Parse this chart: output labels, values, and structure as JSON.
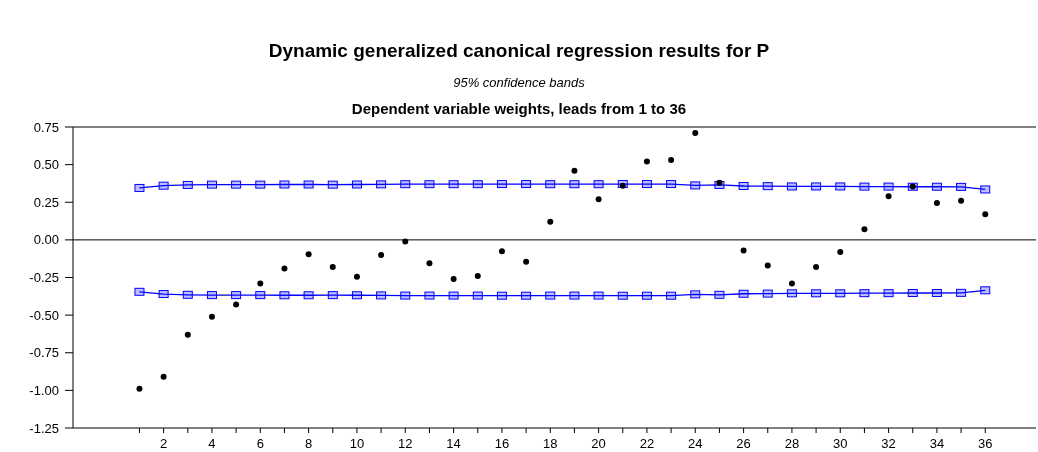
{
  "chart_data": {
    "type": "scatter",
    "title": "Dynamic generalized canonical regression results for P",
    "subtitle": "95% confidence bands",
    "annotations": [
      "Dependent variable weights, leads from 1 to 36"
    ],
    "x": [
      1,
      2,
      3,
      4,
      5,
      6,
      7,
      8,
      9,
      10,
      11,
      12,
      13,
      14,
      15,
      16,
      17,
      18,
      19,
      20,
      21,
      22,
      23,
      24,
      25,
      26,
      27,
      28,
      29,
      30,
      31,
      32,
      33,
      34,
      35,
      36
    ],
    "series": [
      {
        "marker": "circle",
        "color": "#000000",
        "values": [
          -0.99,
          -0.91,
          -0.63,
          -0.51,
          -0.43,
          -0.29,
          -0.19,
          -0.095,
          -0.18,
          -0.245,
          -0.1,
          -0.01,
          -0.155,
          -0.26,
          -0.24,
          -0.075,
          -0.145,
          0.12,
          0.46,
          0.27,
          0.36,
          0.52,
          0.53,
          0.71,
          0.38,
          -0.07,
          -0.17,
          -0.29,
          -0.18,
          -0.08,
          0.07,
          0.29,
          0.355,
          0.245,
          0.26,
          0.17
        ]
      },
      {
        "type": "line",
        "marker": "square",
        "color": "#0000ff",
        "values": [
          0.345,
          0.36,
          0.365,
          0.367,
          0.367,
          0.367,
          0.368,
          0.368,
          0.367,
          0.368,
          0.369,
          0.37,
          0.37,
          0.37,
          0.37,
          0.371,
          0.371,
          0.37,
          0.37,
          0.37,
          0.371,
          0.371,
          0.371,
          0.362,
          0.365,
          0.358,
          0.357,
          0.355,
          0.355,
          0.355,
          0.354,
          0.354,
          0.353,
          0.353,
          0.352,
          0.335
        ]
      },
      {
        "type": "line",
        "marker": "square",
        "color": "#0000ff",
        "values": [
          -0.345,
          -0.36,
          -0.365,
          -0.367,
          -0.367,
          -0.367,
          -0.368,
          -0.368,
          -0.367,
          -0.368,
          -0.369,
          -0.37,
          -0.37,
          -0.37,
          -0.37,
          -0.371,
          -0.371,
          -0.37,
          -0.37,
          -0.37,
          -0.371,
          -0.371,
          -0.371,
          -0.362,
          -0.365,
          -0.358,
          -0.357,
          -0.355,
          -0.355,
          -0.355,
          -0.354,
          -0.354,
          -0.353,
          -0.353,
          -0.352,
          -0.335
        ]
      }
    ],
    "xlim": [
      -1.75,
      38.1
    ],
    "ylim": [
      -1.25,
      0.75
    ],
    "yticks": [
      {
        "value": 0.75,
        "label": "0.75"
      },
      {
        "value": 0.5,
        "label": "0.50"
      },
      {
        "value": 0.25,
        "label": "0.25"
      },
      {
        "value": 0,
        "label": "0.00"
      },
      {
        "value": -0.25,
        "label": "-0.25"
      },
      {
        "value": -0.5,
        "label": "-0.50"
      },
      {
        "value": -0.75,
        "label": "-0.75"
      },
      {
        "value": -1,
        "label": "-1.00"
      },
      {
        "value": -1.25,
        "label": "-1.25"
      }
    ],
    "xticks": [
      {
        "value": 1,
        "label": null
      },
      2,
      {
        "value": 3,
        "label": null
      },
      4,
      {
        "value": 5,
        "label": null
      },
      6,
      {
        "value": 7,
        "label": null
      },
      8,
      {
        "value": 9,
        "label": null
      },
      10,
      {
        "value": 11,
        "label": null
      },
      12,
      {
        "value": 13,
        "label": null
      },
      14,
      {
        "value": 15,
        "label": null
      },
      16,
      {
        "value": 17,
        "label": null
      },
      18,
      {
        "value": 19,
        "label": null
      },
      20,
      {
        "value": 21,
        "label": null
      },
      22,
      {
        "value": 23,
        "label": null
      },
      24,
      {
        "value": 25,
        "label": null
      },
      26,
      {
        "value": 27,
        "label": null
      },
      28,
      {
        "value": 29,
        "label": null
      },
      30,
      {
        "value": 31,
        "label": null
      },
      32,
      {
        "value": 33,
        "label": null
      },
      34,
      {
        "value": 35,
        "label": null
      },
      36
    ],
    "ref_lines": [
      {
        "axis": "y",
        "value": 0,
        "color": "#000000"
      }
    ],
    "grid": false
  }
}
